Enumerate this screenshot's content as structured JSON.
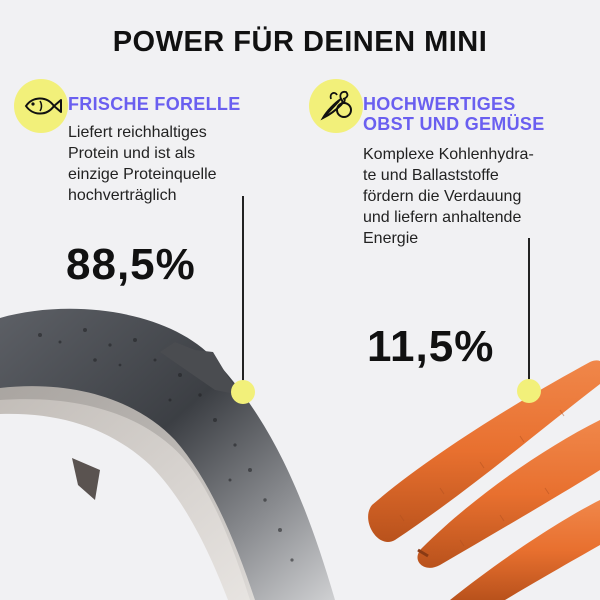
{
  "title": "POWER FÜR DEINEN MINI",
  "colors": {
    "accent": "#6a5ff0",
    "highlight": "#f2f07a",
    "background": "#f1f1f3"
  },
  "left": {
    "icon": "fish-icon",
    "heading": "FRISCHE FORELLE",
    "description": "Liefert reichhaltiges\nProtein und ist als\neinzige Proteinquelle\nhochverträglich",
    "percent": "88,5%",
    "image": "trout-photo"
  },
  "right": {
    "icon": "vegetables-icon",
    "heading": "HOCHWERTIGES\nOBST UND GEMÜSE",
    "description": "Komplexe Kohlenhydra-\nte und Ballaststoffe\nfördern die Verdauung\nund liefern anhaltende\nEnergie",
    "percent": "11,5%",
    "image": "carrots-photo"
  }
}
